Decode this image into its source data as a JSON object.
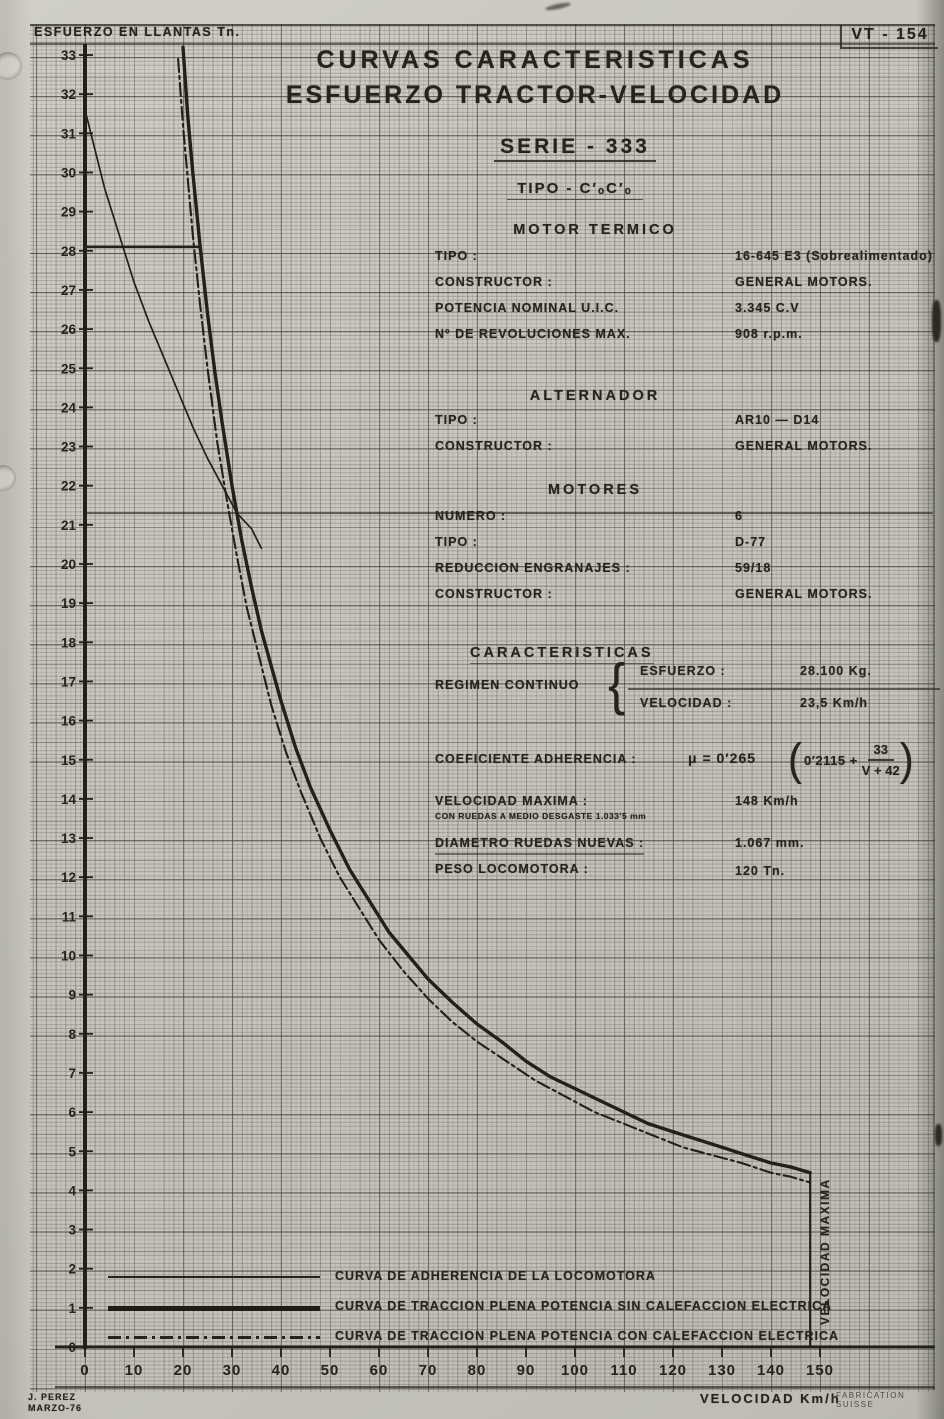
{
  "doc": {
    "code": "VT - 154",
    "title_line1": "CURVAS  CARACTERISTICAS",
    "title_line2": "ESFUERZO  TRACTOR-VELOCIDAD",
    "serie": "SERIE - 333",
    "tipo": "TIPO - C′ₒC′ₒ",
    "author_name": "J. PEREZ",
    "author_date": "MARZO-76",
    "fabrication": "FABRICATION SUISSE"
  },
  "sections": [
    {
      "heading": "MOTOR  TERMICO",
      "rows": [
        [
          "TIPO :",
          "16-645 E3  (Sobrealimentado)"
        ],
        [
          "CONSTRUCTOR :",
          "GENERAL MOTORS."
        ],
        [
          "POTENCIA NOMINAL U.I.C.",
          "3.345  C.V"
        ],
        [
          "Nº DE REVOLUCIONES MAX.",
          "908 r.p.m."
        ]
      ]
    },
    {
      "heading": "ALTERNADOR",
      "rows": [
        [
          "TIPO :",
          "AR10 — D14"
        ],
        [
          "CONSTRUCTOR :",
          "GENERAL MOTORS."
        ]
      ]
    },
    {
      "heading": "MOTORES",
      "rows": [
        [
          "NUMERO :",
          "6"
        ],
        [
          "TIPO :",
          "D-77"
        ],
        [
          "REDUCCION ENGRANAJES :",
          "59/18"
        ],
        [
          "CONSTRUCTOR :",
          "GENERAL MOTORS."
        ]
      ]
    }
  ],
  "caracteristicas": {
    "heading": "CARACTERISTICAS",
    "regimen_label": "REGIMEN  CONTINUO",
    "brace": "{",
    "esfuerzo_label": "ESFUERZO :",
    "esfuerzo_value": "28.100 Kg.",
    "velocidad_label": "VELOCIDAD :",
    "velocidad_value": "23,5  Km/h"
  },
  "extra_specs": {
    "coef_label": "COEFICIENTE ADHERENCIA :",
    "coef_mu": "μ = 0′265",
    "paren_open": "(",
    "coef_term": "0′2115 +",
    "coef_num": "33",
    "coef_den": "V + 42",
    "paren_close": ")",
    "vmax_label": "VELOCIDAD MAXIMA :",
    "vmax_note": "CON RUEDAS A MEDIO DESGASTE 1.033′5 mm",
    "vmax_value": "148  Km/h",
    "ruedas_label": "DIAMETRO RUEDAS NUEVAS :",
    "ruedas_value": "1.067  mm.",
    "peso_label": "PESO  LOCOMOTORA :",
    "peso_value": "120 Tn."
  },
  "legend": [
    {
      "style": "thin",
      "label": "CURVA  DE ADHERENCIA  DE  LA  LOCOMOTORA"
    },
    {
      "style": "thick",
      "label": "CURVA  DE  TRACCION  PLENA  POTENCIA SIN  CALEFACCION  ELECTRICA"
    },
    {
      "style": "dashdot",
      "label": "CURVA  DE  TRACCION  PLENA  POTENCIA CON  CALEFACCION  ELECTRICA"
    }
  ],
  "chart_data": {
    "type": "line",
    "title": "CURVAS CARACTERISTICAS ESFUERZO TRACTOR-VELOCIDAD",
    "xlabel": "VELOCIDAD Km/h",
    "ylabel": "ESFUERZO EN LLANTAS Tn.",
    "xlim": [
      0,
      158
    ],
    "ylim": [
      0,
      33.5
    ],
    "grid": true,
    "legend_position": "bottom-left",
    "x_ticks": [
      0,
      10,
      20,
      30,
      40,
      50,
      60,
      70,
      80,
      90,
      100,
      110,
      120,
      130,
      140,
      150
    ],
    "y_ticks": [
      0,
      1,
      2,
      3,
      4,
      5,
      6,
      7,
      8,
      9,
      10,
      11,
      12,
      13,
      14,
      15,
      16,
      17,
      18,
      19,
      20,
      21,
      22,
      23,
      24,
      25,
      26,
      27,
      28,
      29,
      30,
      31,
      32,
      33
    ],
    "series": [
      {
        "name": "CURVA DE ADHERENCIA DE LA LOCOMOTORA",
        "style": "thin",
        "points": [
          [
            0,
            31.6
          ],
          [
            2,
            30.6
          ],
          [
            4,
            29.6
          ],
          [
            6,
            28.8
          ],
          [
            8,
            28.0
          ],
          [
            10,
            27.2
          ],
          [
            13,
            26.2
          ],
          [
            16,
            25.3
          ],
          [
            19,
            24.4
          ],
          [
            22,
            23.5
          ],
          [
            25,
            22.7
          ],
          [
            28,
            22.0
          ],
          [
            31,
            21.3
          ],
          [
            34,
            20.9
          ],
          [
            36,
            20.4
          ]
        ]
      },
      {
        "name": "CURVA DE TRACCION PLENA POTENCIA SIN CALEFACCION ELECTRICA",
        "style": "thick",
        "points": [
          [
            20,
            33.2
          ],
          [
            21,
            31.4
          ],
          [
            22,
            30.0
          ],
          [
            23.5,
            28.1
          ],
          [
            25,
            26.4
          ],
          [
            26.5,
            24.9
          ],
          [
            28,
            23.6
          ],
          [
            30,
            22.0
          ],
          [
            32,
            20.6
          ],
          [
            34,
            19.4
          ],
          [
            36,
            18.3
          ],
          [
            38,
            17.4
          ],
          [
            40,
            16.5
          ],
          [
            43,
            15.3
          ],
          [
            46,
            14.3
          ],
          [
            50,
            13.2
          ],
          [
            54,
            12.2
          ],
          [
            58,
            11.4
          ],
          [
            62,
            10.6
          ],
          [
            66,
            10.0
          ],
          [
            70,
            9.4
          ],
          [
            75,
            8.8
          ],
          [
            80,
            8.25
          ],
          [
            85,
            7.8
          ],
          [
            90,
            7.3
          ],
          [
            95,
            6.9
          ],
          [
            100,
            6.6
          ],
          [
            105,
            6.3
          ],
          [
            110,
            6.0
          ],
          [
            115,
            5.7
          ],
          [
            120,
            5.5
          ],
          [
            125,
            5.3
          ],
          [
            130,
            5.1
          ],
          [
            135,
            4.9
          ],
          [
            140,
            4.7
          ],
          [
            144,
            4.6
          ],
          [
            148,
            4.45
          ]
        ]
      },
      {
        "name": "CURVA DE TRACCION PLENA POTENCIA CON CALEFACCION ELECTRICA",
        "style": "dashdot",
        "points": [
          [
            19,
            32.9
          ],
          [
            20,
            31.2
          ],
          [
            21,
            29.8
          ],
          [
            22,
            28.4
          ],
          [
            23.5,
            26.6
          ],
          [
            25,
            25.0
          ],
          [
            27,
            23.1
          ],
          [
            29,
            21.6
          ],
          [
            31,
            20.2
          ],
          [
            33,
            18.9
          ],
          [
            35,
            17.9
          ],
          [
            38,
            16.4
          ],
          [
            41,
            15.2
          ],
          [
            44,
            14.2
          ],
          [
            48,
            13.0
          ],
          [
            52,
            12.0
          ],
          [
            56,
            11.2
          ],
          [
            60,
            10.4
          ],
          [
            65,
            9.6
          ],
          [
            70,
            8.9
          ],
          [
            75,
            8.3
          ],
          [
            80,
            7.8
          ],
          [
            86,
            7.3
          ],
          [
            92,
            6.8
          ],
          [
            98,
            6.4
          ],
          [
            104,
            6.0
          ],
          [
            110,
            5.7
          ],
          [
            116,
            5.4
          ],
          [
            122,
            5.1
          ],
          [
            128,
            4.9
          ],
          [
            134,
            4.7
          ],
          [
            140,
            4.45
          ],
          [
            144,
            4.35
          ],
          [
            148,
            4.2
          ]
        ]
      }
    ],
    "annotations": {
      "continuous_effort_line": {
        "y": 28.1,
        "x_from": 0,
        "x_to": 23.5
      },
      "ruled_line": {
        "y": 21.3,
        "x_from": 0,
        "x_to": 173
      },
      "vmax": {
        "x": 148,
        "y_top": 4.45,
        "label": "VELOCIDAD MAXIMA"
      }
    }
  }
}
